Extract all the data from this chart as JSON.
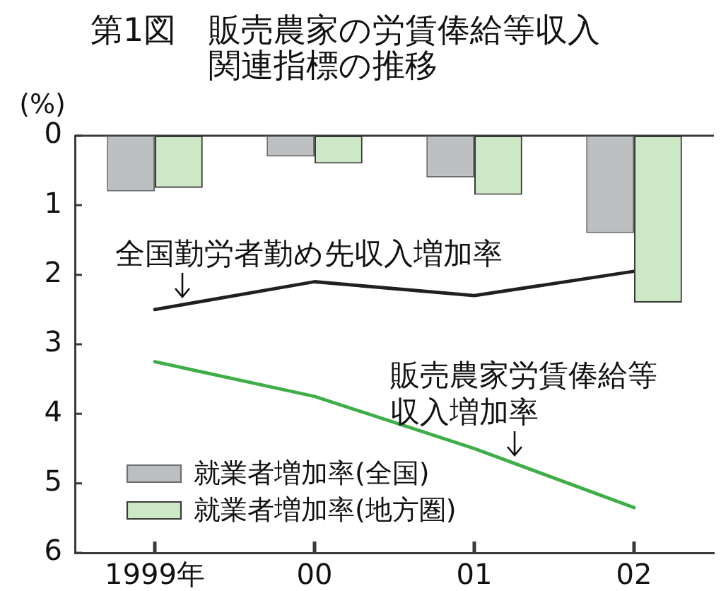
{
  "chart_data": {
    "type": "bar",
    "title": "第1図　販売農家の労賃俸給等収入関連指標の推移",
    "ylabel": "(%)",
    "categories": [
      "1999年",
      "00",
      "01",
      "02"
    ],
    "series": [
      {
        "name": "就業者増加率(全国)",
        "color": "#bcbec0",
        "values": [
          0.8,
          0.3,
          0.6,
          1.4
        ]
      },
      {
        "name": "就業者増加率(地方圏)",
        "color": "#cde8c5",
        "values": [
          0.75,
          0.4,
          0.85,
          2.4
        ]
      },
      {
        "type": "line",
        "name": "全国勤労者勤め先収入増加率",
        "color": "#231f20",
        "values": [
          2.5,
          2.1,
          2.3,
          1.95
        ]
      },
      {
        "type": "line",
        "name": "販売農家労賃俸給等収入増加率",
        "color": "#3fae49",
        "values": [
          3.25,
          3.75,
          4.5,
          5.35
        ]
      }
    ],
    "ylim": [
      6,
      0
    ],
    "yticks": [
      0,
      1,
      2,
      3,
      4,
      5,
      6
    ],
    "grid": false,
    "legend": "bottom left"
  }
}
